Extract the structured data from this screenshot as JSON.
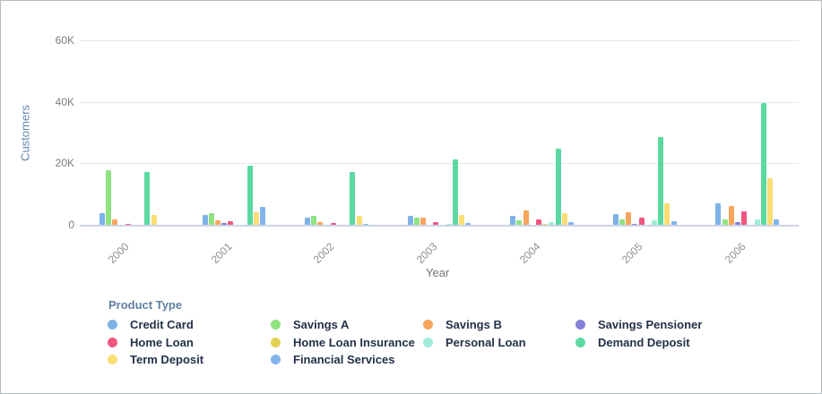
{
  "chart_data": {
    "type": "bar",
    "title": "",
    "xlabel": "Year",
    "ylabel": "Customers",
    "legend_title": "Product Type",
    "legend_position": "bottom",
    "grid": true,
    "categories": [
      "2000",
      "2001",
      "2002",
      "2003",
      "2004",
      "2005",
      "2006"
    ],
    "y_ticks": [
      {
        "label": "0",
        "value": 0
      },
      {
        "label": "20K",
        "value": 20000
      },
      {
        "label": "40K",
        "value": 40000
      },
      {
        "label": "60K",
        "value": 60000
      }
    ],
    "ylim": [
      0,
      66000
    ],
    "series": [
      {
        "name": "Credit Card",
        "color": "#7eb2e6",
        "values": [
          3700,
          3200,
          2300,
          2800,
          2900,
          3500,
          6900
        ]
      },
      {
        "name": "Savings A",
        "color": "#8fe381",
        "values": [
          17900,
          3900,
          2800,
          2200,
          1600,
          1800,
          1900
        ]
      },
      {
        "name": "Savings B",
        "color": "#f7a55c",
        "values": [
          1700,
          1500,
          1000,
          2400,
          4700,
          4200,
          6000
        ]
      },
      {
        "name": "Savings Pensioner",
        "color": "#8381d8",
        "values": [
          0,
          700,
          0,
          0,
          0,
          400,
          1000
        ]
      },
      {
        "name": "Home Loan",
        "color": "#f0567e",
        "values": [
          400,
          1300,
          500,
          1000,
          1800,
          2300,
          4300
        ]
      },
      {
        "name": "Home Loan Insurance",
        "color": "#e2d156",
        "values": [
          0,
          0,
          0,
          0,
          400,
          0,
          0
        ]
      },
      {
        "name": "Personal Loan",
        "color": "#9fecdb",
        "values": [
          0,
          0,
          0,
          400,
          800,
          1500,
          1700
        ]
      },
      {
        "name": "Demand Deposit",
        "color": "#5bd9a1",
        "values": [
          17100,
          19100,
          17200,
          21400,
          24700,
          28500,
          39600
        ]
      },
      {
        "name": "Term Deposit",
        "color": "#fade75",
        "values": [
          3300,
          4000,
          3000,
          3300,
          3700,
          7000,
          15200
        ]
      },
      {
        "name": "Financial Services",
        "color": "#82b4ec",
        "values": [
          0,
          5900,
          200,
          600,
          800,
          1100,
          1900
        ]
      }
    ]
  }
}
